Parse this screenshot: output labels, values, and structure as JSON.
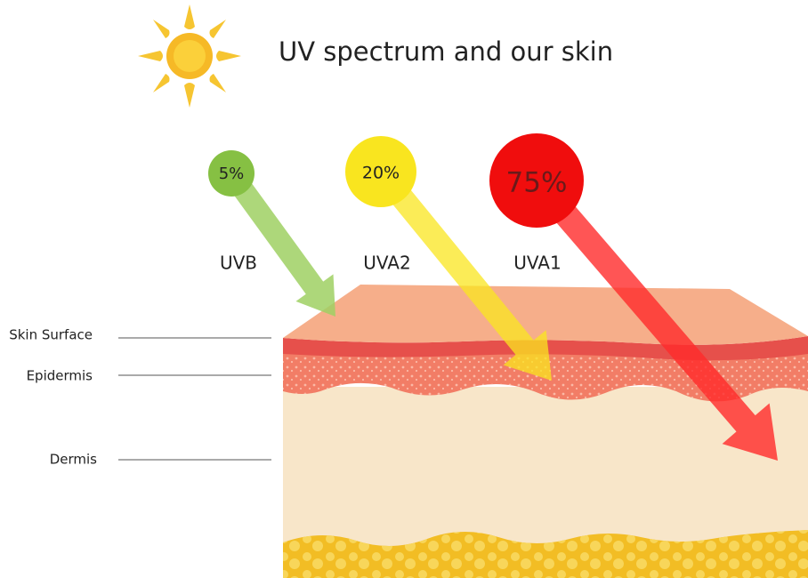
{
  "title": "UV spectrum and our skin",
  "rays": [
    {
      "percent": "5%",
      "label": "UVB"
    },
    {
      "percent": "20%",
      "label": "UVA2"
    },
    {
      "percent": "75%",
      "label": "UVA1"
    }
  ],
  "layers": [
    {
      "label": "Skin Surface"
    },
    {
      "label": "Epidermis"
    },
    {
      "label": "Dermis"
    }
  ]
}
